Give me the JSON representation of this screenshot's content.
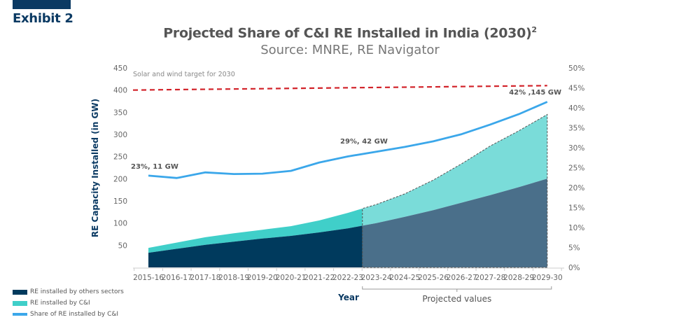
{
  "exhibit": {
    "label": "Exhibit 2"
  },
  "colors": {
    "others": "#003a5d",
    "others_projected": "#4a6f8a",
    "ci": "#40cfc9",
    "ci_projected": "#7adcd9",
    "share_line": "#3ba7ea",
    "target_line": "#d2232a",
    "axis": "#cccccc",
    "header_bar": "#0b3a63"
  },
  "chart_data": {
    "type": "area",
    "title": "Projected Share of C&I RE Installed in India (2030)",
    "title_superscript": "2",
    "subtitle": "Source: MNRE, RE Navigator",
    "xlabel": "Year",
    "ylabel": "RE Capacity Installed (in GW)",
    "categories": [
      "2015-16",
      "2016-17",
      "2017-18",
      "2018-19",
      "2019-20",
      "2020-21",
      "2021-22",
      "2022-23",
      "2023-24",
      "2024-25",
      "2025-26",
      "2026-27",
      "2027-28",
      "2028-29",
      "2029-30"
    ],
    "projected_from_index": 8,
    "projected_label": "Projected values",
    "y_left": {
      "min": 0,
      "max": 450,
      "ticks": [
        50,
        100,
        150,
        200,
        250,
        300,
        350,
        400,
        450
      ]
    },
    "y_right": {
      "min": 0,
      "max": 50,
      "ticks": [
        "0%",
        "5%",
        "10%",
        "15%",
        "20%",
        "25%",
        "30%",
        "35%",
        "40%",
        "45%",
        "50%"
      ]
    },
    "series": [
      {
        "name": "RE installed by others sectors",
        "type": "area",
        "axis": "left",
        "values": [
          33,
          42,
          51,
          58,
          65,
          71,
          79,
          88,
          100,
          114,
          129,
          146,
          163,
          181,
          200
        ]
      },
      {
        "name": "RE installed by C&I",
        "type": "stacked-area",
        "axis": "left",
        "values": [
          11,
          14,
          17,
          19,
          20,
          22,
          27,
          35,
          42,
          52,
          68,
          88,
          111,
          127,
          145
        ]
      },
      {
        "name": "Share of RE installed by C&I",
        "type": "line",
        "axis": "right",
        "values": [
          23,
          22.4,
          23.8,
          23.4,
          23.5,
          24.2,
          26.3,
          27.8,
          29,
          30.2,
          31.6,
          33.4,
          35.8,
          38.4,
          41.5
        ]
      }
    ],
    "target": {
      "label": "Solar and wind target for 2030",
      "start": 400,
      "end": 410,
      "axis": "left"
    },
    "annotations": [
      {
        "text": "23%, 11 GW",
        "index": 0
      },
      {
        "text": "29%, 42 GW",
        "index": 8
      },
      {
        "text": "42% ,145 GW",
        "index": 14
      }
    ],
    "legend": {
      "position": "bottom-left",
      "items": [
        "RE installed by others sectors",
        "RE installed by C&I",
        "Share of RE installed by C&I"
      ]
    }
  }
}
